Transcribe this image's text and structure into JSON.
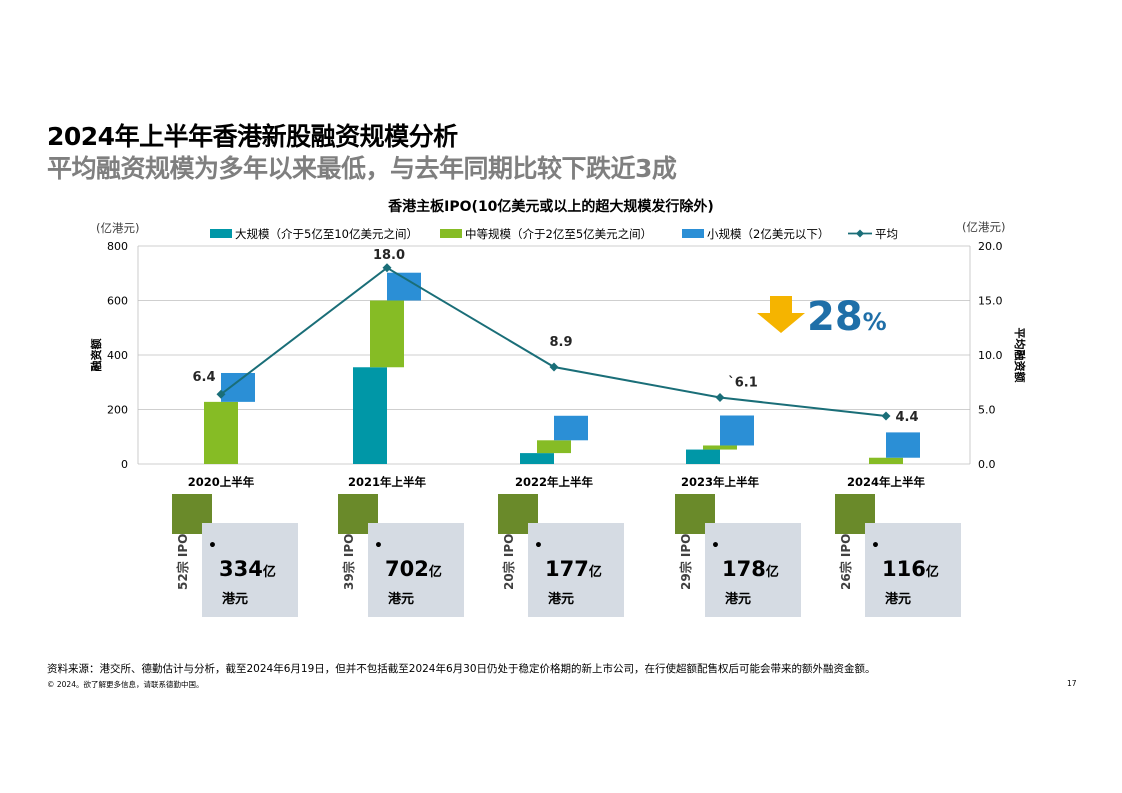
{
  "title": "2024年上半年香港新股融资规模分析",
  "subtitle": "平均融资规模为多年以来最低，与去年同期比较下跌近3成",
  "chart_data": {
    "type": "bar",
    "title": "香港主板IPO(10亿美元或以上的超大规模发行除外)",
    "left_unit": "(亿港元)",
    "right_unit": "(亿港元)",
    "ylabel": "融资额",
    "y2label": "平均融资额",
    "ylim": [
      0,
      800
    ],
    "y2lim": [
      0,
      20
    ],
    "y_ticks": [
      "0",
      "200",
      "400",
      "600",
      "800"
    ],
    "y2_ticks": [
      "0.0",
      "5.0",
      "10.0",
      "15.0",
      "20.0"
    ],
    "categories": [
      "2020上半年",
      "2021年上半年",
      "2022年上半年",
      "2023年上半年",
      "2024年上半年"
    ],
    "series": [
      {
        "name": "大规模（介于5亿至10亿美元之间）",
        "color": "#0097a7",
        "values": [
          0,
          355,
          40,
          53,
          0
        ]
      },
      {
        "name": "中等规模（介于2亿至5亿美元之间）",
        "color": "#86bc25",
        "values": [
          228,
          245,
          47,
          15,
          23
        ]
      },
      {
        "name": "小规模（2亿美元以下）",
        "color": "#2b8fd6",
        "values": [
          106,
          102,
          90,
          110,
          93
        ]
      }
    ],
    "line": {
      "name": "平均",
      "color": "#1a6e78",
      "values": [
        6.4,
        18.0,
        8.9,
        6.1,
        4.4
      ],
      "labels": [
        "6.4",
        "18.0",
        "8.9",
        "`6.1",
        "4.4"
      ]
    },
    "callout": {
      "value": "28",
      "suffix": "%",
      "arrow_color": "#f5b400",
      "text_color": "#1f6fa8"
    },
    "grid": true,
    "legend_position": "top"
  },
  "stats": [
    {
      "count": "52宗 IPO",
      "amount": "334",
      "unit1": "亿",
      "unit2": "港元"
    },
    {
      "count": "39宗 IPO",
      "amount": "702",
      "unit1": "亿",
      "unit2": "港元"
    },
    {
      "count": "20宗 IPO",
      "amount": "177",
      "unit1": "亿",
      "unit2": "港元"
    },
    {
      "count": "29宗 IPO",
      "amount": "178",
      "unit1": "亿",
      "unit2": "港元"
    },
    {
      "count": "26宗 IPO",
      "amount": "116",
      "unit1": "亿",
      "unit2": "港元"
    }
  ],
  "bullet": "•",
  "footer": {
    "source": "资料来源：港交所、德勤估计与分析，截至2024年6月19日，但并不包括截至2024年6月30日仍处于稳定价格期的新上市公司，在行使超额配售权后可能会带来的额外融资金额。",
    "copyright": "© 2024。欲了解更多信息，请联系德勤中国。",
    "page": "17"
  }
}
